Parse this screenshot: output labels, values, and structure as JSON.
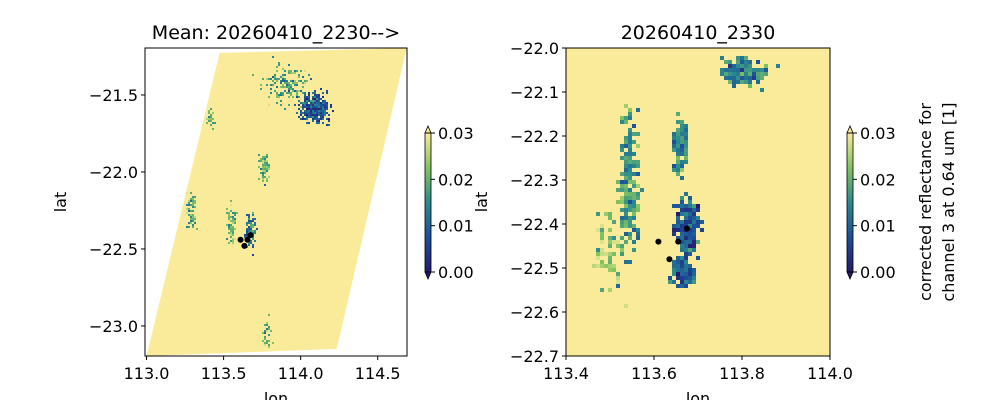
{
  "colormap": {
    "stops": [
      "#251a6e",
      "#1d4f9a",
      "#2a8a8e",
      "#84c460",
      "#f9eb9a"
    ]
  },
  "chart_data": [
    {
      "type": "heatmap",
      "title": "Mean: 20260410_2230-->",
      "xlabel": "lon",
      "ylabel": "lat",
      "xlim": [
        112.99,
        114.69
      ],
      "ylim": [
        -23.195,
        -21.195
      ],
      "xticks": [
        113.0,
        113.5,
        114.0,
        114.5
      ],
      "xtick_labels": [
        "113.0",
        "113.5",
        "114.0",
        "114.5"
      ],
      "yticks": [
        -21.5,
        -22.0,
        -22.5,
        -23.0
      ],
      "ytick_labels": [
        "−21.5",
        "−22.0",
        "−22.5",
        "−23.0"
      ],
      "swath_corners": [
        [
          113.474,
          -21.227
        ],
        [
          114.688,
          -21.195
        ],
        [
          114.234,
          -23.149
        ],
        [
          113.0,
          -23.195
        ]
      ],
      "background_value": 0.03,
      "cloud_clusters": [
        {
          "lon": 114.08,
          "lat": -21.58,
          "spread_lon": 0.09,
          "spread_lat": 0.09,
          "count": 420,
          "mean": 0.008
        },
        {
          "lon": 113.9,
          "lat": -21.42,
          "spread_lon": 0.14,
          "spread_lat": 0.12,
          "count": 150,
          "mean": 0.018
        },
        {
          "lon": 113.76,
          "lat": -21.97,
          "spread_lon": 0.03,
          "spread_lat": 0.08,
          "count": 90,
          "mean": 0.018
        },
        {
          "lon": 113.67,
          "lat": -22.38,
          "spread_lon": 0.03,
          "spread_lat": 0.1,
          "count": 110,
          "mean": 0.012
        },
        {
          "lon": 113.55,
          "lat": -22.35,
          "spread_lon": 0.03,
          "spread_lat": 0.12,
          "count": 70,
          "mean": 0.02
        },
        {
          "lon": 113.29,
          "lat": -22.25,
          "spread_lon": 0.03,
          "spread_lat": 0.1,
          "count": 60,
          "mean": 0.02
        },
        {
          "lon": 113.41,
          "lat": -21.65,
          "spread_lon": 0.03,
          "spread_lat": 0.05,
          "count": 25,
          "mean": 0.02
        },
        {
          "lon": 113.78,
          "lat": -23.05,
          "spread_lon": 0.03,
          "spread_lat": 0.1,
          "count": 30,
          "mean": 0.02
        }
      ],
      "points": [
        [
          113.61,
          -22.44
        ],
        [
          113.655,
          -22.44
        ],
        [
          113.675,
          -22.41
        ],
        [
          113.635,
          -22.48
        ]
      ],
      "colorbar": {
        "min": 0.0,
        "max": 0.03,
        "ticks": [
          0.0,
          0.01,
          0.02,
          0.03
        ],
        "tick_labels": [
          "0.00",
          "0.01",
          "0.02",
          "0.03"
        ],
        "extend": "both"
      }
    },
    {
      "type": "heatmap",
      "title": "20260410_2330",
      "xlabel": "lon",
      "ylabel": "lat",
      "xlim": [
        113.4,
        114.0
      ],
      "ylim": [
        -22.7,
        -22.0
      ],
      "xticks": [
        113.4,
        113.6,
        113.8,
        114.0
      ],
      "xtick_labels": [
        "113.4",
        "113.6",
        "113.8",
        "114.0"
      ],
      "yticks": [
        -22.0,
        -22.1,
        -22.2,
        -22.3,
        -22.4,
        -22.5,
        -22.6,
        -22.7
      ],
      "ytick_labels": [
        "−22.0",
        "−22.1",
        "−22.2",
        "−22.3",
        "−22.4",
        "−22.5",
        "−22.6",
        "−22.7"
      ],
      "background_value": 0.03,
      "cloud_clusters": [
        {
          "lon": 113.67,
          "lat": -22.4,
          "spread_lon": 0.025,
          "spread_lat": 0.05,
          "count": 260,
          "mean": 0.008
        },
        {
          "lon": 113.66,
          "lat": -22.5,
          "spread_lon": 0.025,
          "spread_lat": 0.03,
          "count": 130,
          "mean": 0.01
        },
        {
          "lon": 113.655,
          "lat": -22.22,
          "spread_lon": 0.015,
          "spread_lat": 0.06,
          "count": 100,
          "mean": 0.015
        },
        {
          "lon": 113.54,
          "lat": -22.3,
          "spread_lon": 0.02,
          "spread_lat": 0.15,
          "count": 230,
          "mean": 0.016
        },
        {
          "lon": 113.8,
          "lat": -22.05,
          "spread_lon": 0.05,
          "spread_lat": 0.03,
          "count": 120,
          "mean": 0.015
        },
        {
          "lon": 113.49,
          "lat": -22.45,
          "spread_lon": 0.03,
          "spread_lat": 0.1,
          "count": 60,
          "mean": 0.023
        }
      ],
      "points": [
        [
          113.61,
          -22.44
        ],
        [
          113.655,
          -22.44
        ],
        [
          113.675,
          -22.41
        ],
        [
          113.635,
          -22.48
        ]
      ],
      "colorbar": {
        "min": 0.0,
        "max": 0.03,
        "ticks": [
          0.0,
          0.01,
          0.02,
          0.03
        ],
        "tick_labels": [
          "0.00",
          "0.01",
          "0.02",
          "0.03"
        ],
        "extend": "both",
        "label": "corrected reflectance for",
        "label_line2": "channel 3 at 0.64 um [1]"
      }
    }
  ]
}
